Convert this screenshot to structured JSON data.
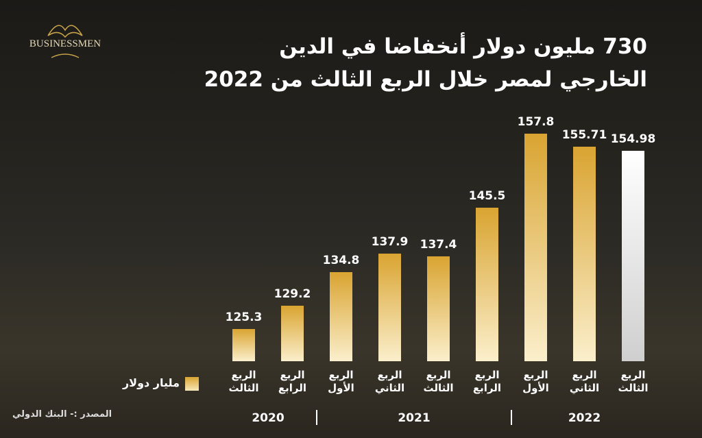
{
  "brand": "BUSINESSMEN",
  "chart_data": {
    "type": "bar",
    "title_lines": [
      "730 مليون دولار أنخفاضا في الدين",
      "الخارجي لمصر خلال الربع  الثالث من 2022"
    ],
    "categories": [
      "الربع الثالث",
      "الربع الرابع",
      "الربع الأول",
      "الربع الثاني",
      "الربع الثالث",
      "الربع الرابع",
      "الربع الأول",
      "الربع الثاني",
      "الربع الثالث"
    ],
    "values": [
      125.3,
      129.2,
      134.8,
      137.9,
      137.4,
      145.5,
      157.8,
      155.71,
      154.98
    ],
    "colors": [
      "#d9a431",
      "#d9a431",
      "#d9a431",
      "#d9a431",
      "#d9a431",
      "#d9a431",
      "#d9a431",
      "#d9a431",
      "#ffffff"
    ],
    "x_groups": [
      {
        "label": "2020",
        "span": 2
      },
      {
        "label": "2021",
        "span": 4
      },
      {
        "label": "2022",
        "span": 3
      }
    ],
    "legend": "مليار دولار",
    "source": "المصدر :- البنك الدولي",
    "ylim": [
      120,
      160
    ]
  }
}
